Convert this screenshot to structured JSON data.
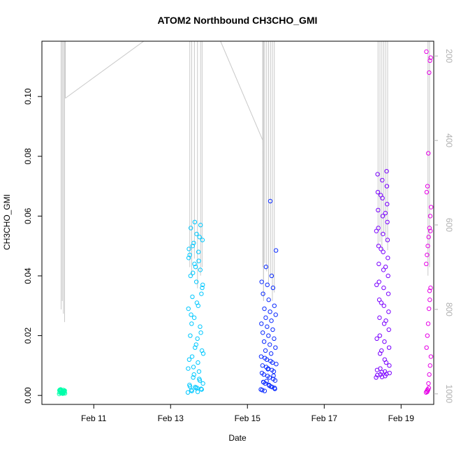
{
  "chart_data": {
    "type": "scatter",
    "title": "ATOM2 Northbound CH3CHO_GMI",
    "xlabel": "Date",
    "ylabel": "CH3CHO_GMI",
    "x_unit": "days since Feb 10 00:00 (fractional)",
    "xlim": [
      9.65,
      19.85
    ],
    "ylim": [
      -0.003,
      0.1185
    ],
    "x_ticks": [
      {
        "value": 11,
        "label": "Feb 11"
      },
      {
        "value": 13,
        "label": "Feb 13"
      },
      {
        "value": 15,
        "label": "Feb 15"
      },
      {
        "value": 17,
        "label": "Feb 17"
      },
      {
        "value": 19,
        "label": "Feb 19"
      }
    ],
    "y_ticks": [
      {
        "value": 0.0,
        "label": "0.00"
      },
      {
        "value": 0.02,
        "label": "0.02"
      },
      {
        "value": 0.04,
        "label": "0.04"
      },
      {
        "value": 0.06,
        "label": "0.06"
      },
      {
        "value": 0.08,
        "label": "0.08"
      },
      {
        "value": 0.1,
        "label": "0.10"
      }
    ],
    "right_axis": {
      "label": "",
      "color": "#b0b0b0",
      "ylim": [
        1025,
        165
      ],
      "ticks": [
        {
          "value": 200,
          "label": "200"
        },
        {
          "value": 400,
          "label": "400"
        },
        {
          "value": 600,
          "label": "600"
        },
        {
          "value": 800,
          "label": "800"
        },
        {
          "value": 1000,
          "label": "1000"
        }
      ]
    },
    "grid": false,
    "legend": "none",
    "pressure_trace_color": "#c8c8c8",
    "flights": [
      {
        "color": "#00ffaa",
        "x_range": [
          10.1,
          10.25
        ],
        "y_values": [
          0.0005,
          0.0008,
          0.001,
          0.0012,
          0.0015,
          0.0018,
          0.002,
          0.0009,
          0.0011,
          0.0014,
          0.0016,
          0.0007,
          0.0013,
          0.0017,
          0.0006,
          0.0019,
          0.001,
          0.0015,
          0.0012,
          0.0008,
          0.0014,
          0.0011,
          0.0016,
          0.0009
        ],
        "pressure_trace": [
          [
            10.15,
            800
          ],
          [
            10.18,
            780
          ],
          [
            10.21,
            810
          ],
          [
            10.24,
            830
          ],
          [
            10.26,
            300
          ],
          [
            12.3,
            165
          ],
          [
            14.3,
            165
          ],
          [
            15.4,
            400
          ],
          [
            15.42,
            780
          ]
        ]
      },
      {
        "color": "#00c8ff",
        "x_range": [
          13.45,
          13.85
        ],
        "y_values": [
          0.001,
          0.0012,
          0.0015,
          0.002,
          0.0025,
          0.003,
          0.005,
          0.007,
          0.009,
          0.011,
          0.013,
          0.015,
          0.017,
          0.02,
          0.023,
          0.026,
          0.029,
          0.03,
          0.033,
          0.036,
          0.038,
          0.04,
          0.042,
          0.044,
          0.046,
          0.048,
          0.05,
          0.052,
          0.054,
          0.056,
          0.057,
          0.058,
          0.049,
          0.045,
          0.041,
          0.037,
          0.031,
          0.027,
          0.021,
          0.016,
          0.012,
          0.008,
          0.006,
          0.004,
          0.0025,
          0.0018,
          0.0022,
          0.0028,
          0.0035,
          0.0055,
          0.0095,
          0.014,
          0.019,
          0.024,
          0.034,
          0.043,
          0.047,
          0.053,
          0.051
        ],
        "pressure_trace": [
          [
            13.5,
            700
          ],
          [
            13.55,
            720
          ],
          [
            13.62,
            680
          ],
          [
            13.7,
            750
          ],
          [
            13.78,
            720
          ],
          [
            13.82,
            700
          ]
        ]
      },
      {
        "color": "#0a2aff",
        "x_range": [
          15.35,
          15.75
        ],
        "y_values": [
          0.002,
          0.003,
          0.004,
          0.005,
          0.006,
          0.007,
          0.008,
          0.009,
          0.01,
          0.011,
          0.012,
          0.013,
          0.014,
          0.015,
          0.016,
          0.017,
          0.018,
          0.019,
          0.02,
          0.021,
          0.022,
          0.023,
          0.024,
          0.025,
          0.026,
          0.027,
          0.028,
          0.029,
          0.03,
          0.032,
          0.034,
          0.036,
          0.037,
          0.038,
          0.04,
          0.043,
          0.0485,
          0.065,
          0.0015,
          0.0025,
          0.0035,
          0.0045,
          0.0055,
          0.0065,
          0.0075,
          0.0085,
          0.0095,
          0.0105,
          0.0115,
          0.0125,
          0.0022,
          0.0033,
          0.0044,
          0.0066,
          0.0088,
          0.0018,
          0.0028,
          0.0048
        ],
        "pressure_trace": [
          [
            15.4,
            700
          ],
          [
            15.45,
            690
          ],
          [
            15.5,
            710
          ],
          [
            15.55,
            740
          ],
          [
            15.6,
            720
          ],
          [
            15.65,
            780
          ],
          [
            15.7,
            760
          ]
        ]
      },
      {
        "color": "#7a00ff",
        "x_range": [
          18.35,
          18.7
        ],
        "y_values": [
          0.006,
          0.0065,
          0.007,
          0.0075,
          0.008,
          0.009,
          0.01,
          0.012,
          0.014,
          0.016,
          0.018,
          0.02,
          0.022,
          0.024,
          0.026,
          0.028,
          0.03,
          0.032,
          0.034,
          0.036,
          0.038,
          0.04,
          0.042,
          0.044,
          0.046,
          0.048,
          0.05,
          0.052,
          0.054,
          0.056,
          0.058,
          0.06,
          0.062,
          0.064,
          0.066,
          0.068,
          0.07,
          0.072,
          0.074,
          0.075,
          0.0062,
          0.0068,
          0.0072,
          0.0078,
          0.0085,
          0.011,
          0.015,
          0.019,
          0.025,
          0.031,
          0.037,
          0.043,
          0.049,
          0.055,
          0.061,
          0.067
        ],
        "pressure_trace": [
          [
            18.4,
            650
          ],
          [
            18.45,
            640
          ],
          [
            18.5,
            660
          ],
          [
            18.55,
            620
          ],
          [
            18.6,
            640
          ],
          [
            18.65,
            660
          ]
        ]
      },
      {
        "color": "#e600e6",
        "x_range": [
          19.65,
          19.78
        ],
        "y_values": [
          0.001,
          0.0015,
          0.002,
          0.004,
          0.007,
          0.01,
          0.013,
          0.016,
          0.02,
          0.024,
          0.029,
          0.032,
          0.036,
          0.044,
          0.047,
          0.05,
          0.053,
          0.056,
          0.06,
          0.063,
          0.068,
          0.07,
          0.081,
          0.108,
          0.112,
          0.113,
          0.115,
          0.0012,
          0.0018,
          0.0025,
          0.035,
          0.055
        ],
        "pressure_trace": [
          [
            19.7,
            720
          ],
          [
            19.74,
            700
          ]
        ]
      }
    ]
  }
}
